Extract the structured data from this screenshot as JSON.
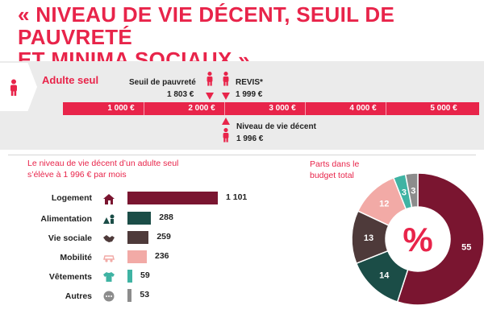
{
  "title": {
    "line1": "« NIVEAU DE VIE DÉCENT, SEUIL DE PAUVRETÉ",
    "line2": "ET MINIMA SOCIAUX »"
  },
  "scale": {
    "adult_label": "Adulte seul",
    "ticks": [
      "1 000 €",
      "2 000 €",
      "3 000 €",
      "4 000 €",
      "5 000 €"
    ],
    "markers": {
      "poverty": {
        "label": "Seuil de pauvreté",
        "value": "1 803 €"
      },
      "revis": {
        "label": "REVIS*",
        "value": "1 999 €"
      },
      "decent": {
        "label": "Niveau de vie décent",
        "value": "1 996 €"
      }
    }
  },
  "colors": {
    "accent": "#e8244a",
    "logement": "#7a1530",
    "alimentation": "#1b4d47",
    "vie_sociale": "#4e3a3a",
    "mobilite": "#f2aaa6",
    "vetements": "#3fb3a3",
    "autres": "#8c8c8c"
  },
  "budget": {
    "intro": "Le niveau de vie décent d’un adulte seul s’élève à 1 996 € par mois"
  },
  "pie": {
    "label": "Parts dans le budget total",
    "center": "%"
  },
  "chart_data": [
    {
      "type": "bar",
      "orientation": "horizontal",
      "categories": [
        "Logement",
        "Alimentation",
        "Vie sociale",
        "Mobilité",
        "Vêtements",
        "Autres"
      ],
      "values": [
        1101,
        288,
        259,
        236,
        59,
        53
      ],
      "labels": [
        "1 101",
        "288",
        "259",
        "236",
        "59",
        "53"
      ]
    },
    {
      "type": "pie",
      "categories": [
        "Logement",
        "Alimentation",
        "Vie sociale",
        "Mobilité",
        "Vêtements",
        "Autres"
      ],
      "values": [
        55,
        14,
        13,
        12,
        3,
        3
      ]
    }
  ]
}
